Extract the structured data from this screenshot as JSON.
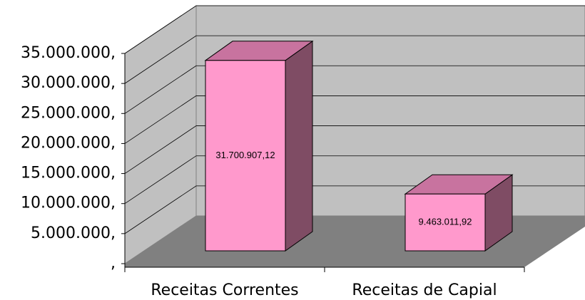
{
  "chart_data": {
    "type": "bar3d",
    "categories": [
      "Receitas Correntes",
      "Receitas de Capial"
    ],
    "values": [
      31700907.12,
      9463011.92
    ],
    "value_labels": [
      "31.700.907,12",
      "9.463.011,92"
    ],
    "colors": {
      "front": "#ff99cc",
      "top": "#c8739f",
      "side": "#7f4c64"
    },
    "ylim": [
      0,
      35000000
    ],
    "yticks": [
      {
        "value": 0,
        "label": ","
      },
      {
        "value": 5000000,
        "label": "5.000.000,"
      },
      {
        "value": 10000000,
        "label": "10.000.000,"
      },
      {
        "value": 15000000,
        "label": "15.000.000,"
      },
      {
        "value": 20000000,
        "label": "20.000.000,"
      },
      {
        "value": 25000000,
        "label": "25.000.000,"
      },
      {
        "value": 30000000,
        "label": "30.000.000,"
      },
      {
        "value": 35000000,
        "label": "35.000.000,"
      }
    ],
    "grid": true
  }
}
